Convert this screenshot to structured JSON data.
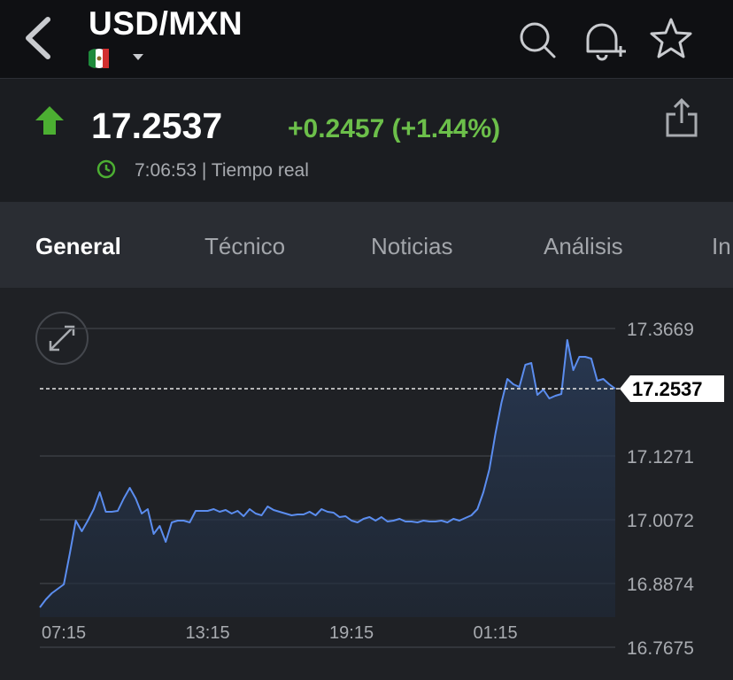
{
  "header": {
    "title": "USD/MXN"
  },
  "quote": {
    "price": "17.2537",
    "change": "+0.2457 (+1.44%)",
    "time": "7:06:53 | Tiempo real"
  },
  "tabs": [
    "General",
    "Técnico",
    "Noticias",
    "Análisis",
    "In"
  ],
  "chart_data": {
    "type": "line",
    "series": [
      {
        "color": "#5b8def",
        "values": [
          16.8424,
          16.8574,
          16.8691,
          16.8774,
          16.8857,
          16.944,
          17.0056,
          16.9856,
          17.0056,
          17.0272,
          17.0589,
          17.0222,
          17.0222,
          17.0239,
          17.0472,
          17.0672,
          17.0472,
          17.0189,
          17.0272,
          16.9806,
          16.9956,
          16.9656,
          17.0023,
          17.0056,
          17.0056,
          17.0023,
          17.0239,
          17.0239,
          17.0239,
          17.0272,
          17.0222,
          17.0256,
          17.0189,
          17.0239,
          17.0139,
          17.0272,
          17.0189,
          17.0156,
          17.0322,
          17.0256,
          17.0222,
          17.0189,
          17.0156,
          17.0173,
          17.0173,
          17.0222,
          17.0156,
          17.0272,
          17.0222,
          17.0206,
          17.0123,
          17.0139,
          17.0056,
          17.0023,
          17.0089,
          17.0123,
          17.0056,
          17.0123,
          17.0039,
          17.0056,
          17.0089,
          17.0039,
          17.0039,
          17.0023,
          17.0056,
          17.0039,
          17.0039,
          17.0056,
          17.0023,
          17.0089,
          17.0056,
          17.0106,
          17.0156,
          17.0272,
          17.0589,
          17.1022,
          17.1688,
          17.227,
          17.272,
          17.262,
          17.257,
          17.2986,
          17.302,
          17.242,
          17.252,
          17.2354,
          17.2404,
          17.2437,
          17.3453,
          17.2886,
          17.3136,
          17.3136,
          17.3103,
          17.2687,
          17.272,
          17.262,
          17.2537
        ]
      }
    ],
    "current_price": 17.2537,
    "xlim": [
      0,
      96
    ],
    "xticks": [
      {
        "value": 4,
        "label": "07:15"
      },
      {
        "value": 28,
        "label": "13:15"
      },
      {
        "value": 52,
        "label": "19:15"
      },
      {
        "value": 76,
        "label": "01:15"
      }
    ],
    "ylim": [
      16.7675,
      17.3669
    ],
    "yticks": [
      17.3669,
      17.1271,
      17.0072,
      16.8874,
      16.7675
    ],
    "grid": true
  }
}
